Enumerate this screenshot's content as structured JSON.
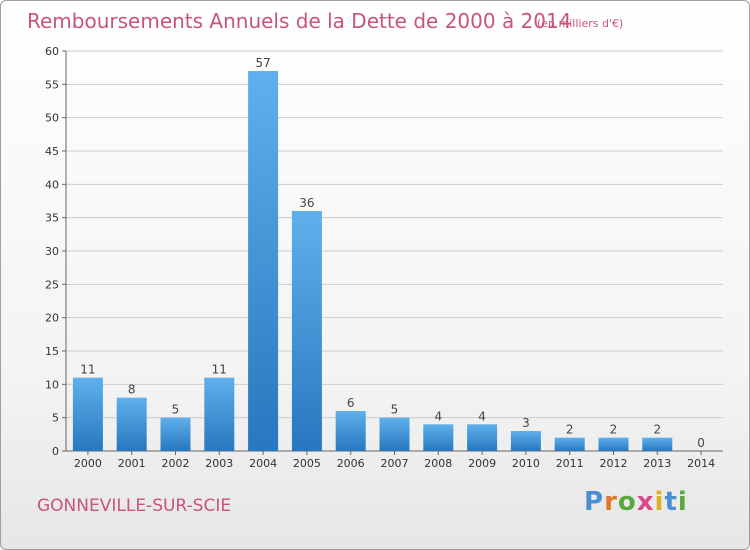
{
  "chart_data": {
    "type": "bar",
    "title": "Remboursements Annuels de la Dette de 2000 à 2014",
    "subtitle": "(en milliers d'€)",
    "categories": [
      "2000",
      "2001",
      "2002",
      "2003",
      "2004",
      "2005",
      "2006",
      "2007",
      "2008",
      "2009",
      "2010",
      "2011",
      "2012",
      "2013",
      "2014"
    ],
    "values": [
      11,
      8,
      5,
      11,
      57,
      36,
      6,
      5,
      4,
      4,
      3,
      2,
      2,
      2,
      0
    ],
    "ylim": [
      0,
      60
    ],
    "yticks": [
      0,
      5,
      10,
      15,
      20,
      25,
      30,
      35,
      40,
      45,
      50,
      55,
      60
    ],
    "grid": true,
    "bar_color": "#3a8fd8"
  },
  "footer": {
    "place": "GONNEVILLE-SUR-SCIE",
    "logo": "Proxiti",
    "logo_colors": [
      "#4a8fd4",
      "#e07a2a",
      "#5aa83c",
      "#d94a8a",
      "#e0b020",
      "#4a8fd4",
      "#5aa83c"
    ]
  }
}
